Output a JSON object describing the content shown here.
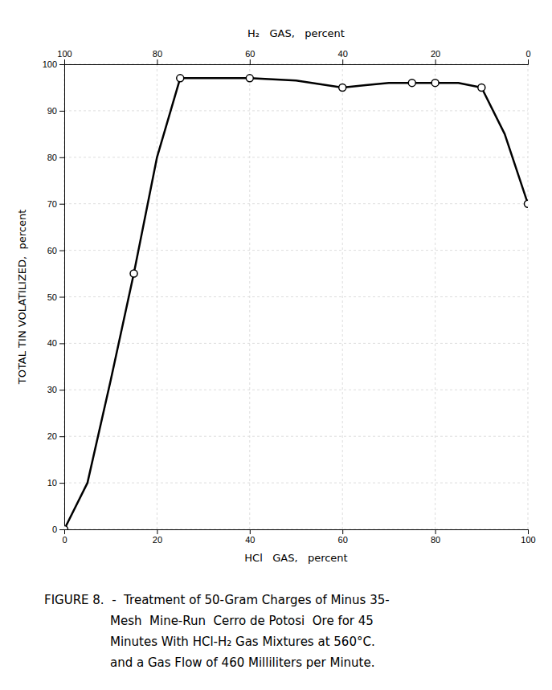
{
  "chart_data": {
    "type": "line",
    "xlabel": "HCl   GAS,   percent",
    "x2label": "H₂   GAS,   percent",
    "ylabel": "TOTAL TIN VOLATILIZED,  percent",
    "xlim": [
      0,
      100
    ],
    "ylim": [
      0,
      100
    ],
    "x2lim": [
      100,
      0
    ],
    "xticks": [
      0,
      20,
      40,
      60,
      80,
      100
    ],
    "x2ticks": [
      0,
      20,
      40,
      60,
      80,
      100
    ],
    "yticks": [
      0,
      10,
      20,
      30,
      40,
      50,
      60,
      70,
      80,
      90,
      100
    ],
    "grid": true,
    "series": [
      {
        "type": "line",
        "color": "#000000",
        "x": [
          0,
          5,
          10,
          15,
          20,
          25,
          30,
          40,
          50,
          60,
          65,
          70,
          75,
          80,
          85,
          90,
          95,
          100
        ],
        "values": [
          0,
          10,
          32,
          55,
          80,
          97,
          97,
          97,
          96.5,
          95,
          95.5,
          96,
          96,
          96,
          96,
          95,
          85,
          70
        ]
      },
      {
        "type": "scatter",
        "marker": "circle",
        "color": "#000000",
        "x": [
          0,
          15,
          25,
          40,
          60,
          75,
          80,
          90,
          100
        ],
        "values": [
          0,
          55,
          97,
          97,
          95,
          96,
          96,
          95,
          70
        ]
      }
    ],
    "caption": [
      "FIGURE 8.  -  Treatment of 50-Gram Charges of Minus 35-",
      "Mesh  Mine-Run  Cerro de Potosi  Ore for 45",
      "Minutes With HCl-H₂ Gas Mixtures at 560°C.",
      "and a Gas Flow of 460 Milliliters per Minute."
    ]
  }
}
